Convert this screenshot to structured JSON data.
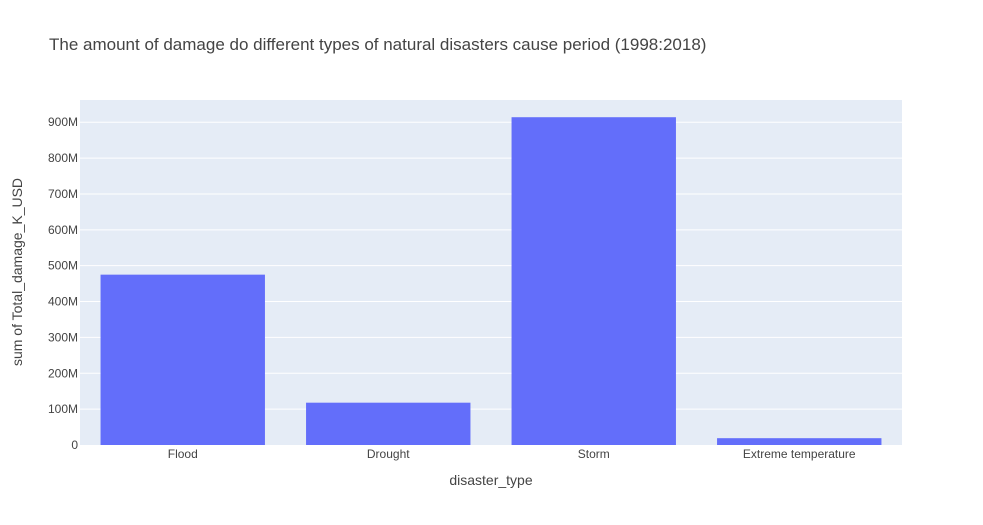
{
  "chart_data": {
    "type": "bar",
    "title": "The amount of damage do different types of natural disasters cause period (1998:2018)",
    "xlabel": "disaster_type",
    "ylabel": "sum of Total_damage_K_USD",
    "categories": [
      "Flood",
      "Drought",
      "Storm",
      "Extreme temperature"
    ],
    "values": [
      475000000,
      118000000,
      914000000,
      19000000
    ],
    "ylim": [
      0,
      962000000
    ],
    "yticks": [
      0,
      100000000,
      200000000,
      300000000,
      400000000,
      500000000,
      600000000,
      700000000,
      800000000,
      900000000
    ],
    "ytick_labels": [
      "0",
      "100M",
      "200M",
      "300M",
      "400M",
      "500M",
      "600M",
      "700M",
      "800M",
      "900M"
    ],
    "grid": true,
    "legend": "none",
    "colors": {
      "bar": "#636efa",
      "plot_bg": "#e5ecf6",
      "grid": "#ffffff",
      "text": "#444444"
    }
  }
}
